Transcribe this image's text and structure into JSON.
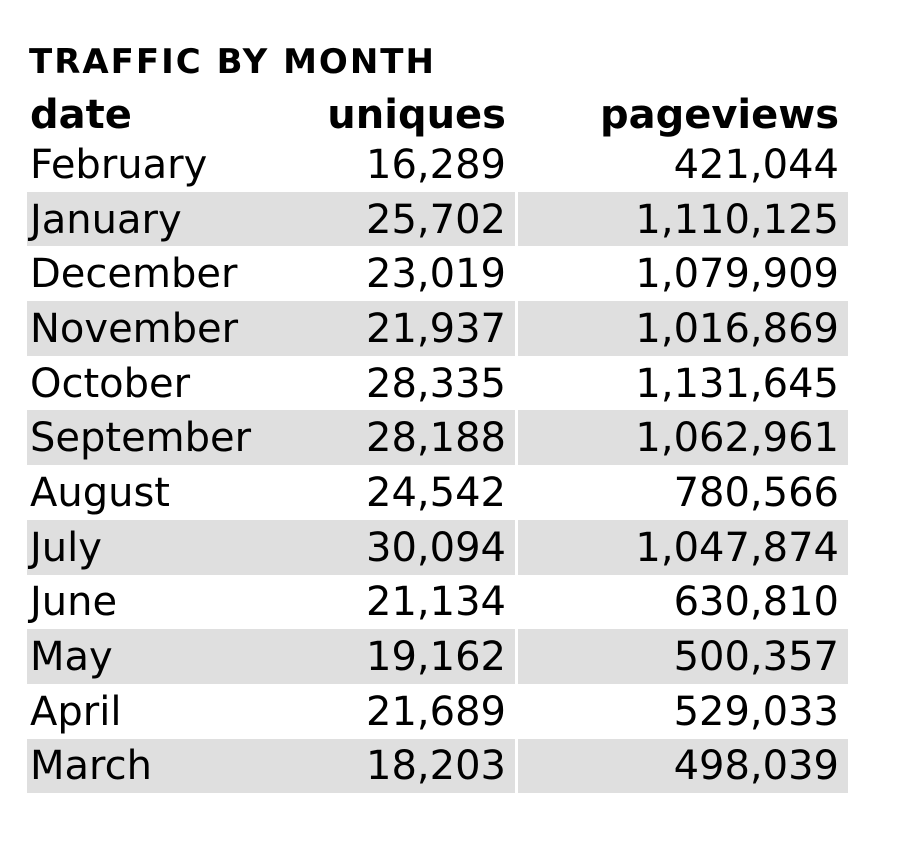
{
  "title": "TRAFFIC BY MONTH",
  "table": {
    "headers": {
      "date": "date",
      "uniques": "uniques",
      "pageviews": "pageviews"
    },
    "rows": [
      {
        "date": "February",
        "uniques": "16,289",
        "pageviews": "421,044"
      },
      {
        "date": "January",
        "uniques": "25,702",
        "pageviews": "1,110,125"
      },
      {
        "date": "December",
        "uniques": "23,019",
        "pageviews": "1,079,909"
      },
      {
        "date": "November",
        "uniques": "21,937",
        "pageviews": "1,016,869"
      },
      {
        "date": "October",
        "uniques": "28,335",
        "pageviews": "1,131,645"
      },
      {
        "date": "September",
        "uniques": "28,188",
        "pageviews": "1,062,961"
      },
      {
        "date": "August",
        "uniques": "24,542",
        "pageviews": "780,566"
      },
      {
        "date": "July",
        "uniques": "30,094",
        "pageviews": "1,047,874"
      },
      {
        "date": "June",
        "uniques": "21,134",
        "pageviews": "630,810"
      },
      {
        "date": "May",
        "uniques": "19,162",
        "pageviews": "500,357"
      },
      {
        "date": "April",
        "uniques": "21,689",
        "pageviews": "529,033"
      },
      {
        "date": "March",
        "uniques": "18,203",
        "pageviews": "498,039"
      }
    ]
  },
  "colors": {
    "background": "#ffffff",
    "stripe": "#dfdfdf",
    "text": "#000000"
  },
  "chart_data": {
    "type": "table",
    "title": "TRAFFIC BY MONTH",
    "columns": [
      "date",
      "uniques",
      "pageviews"
    ],
    "rows": [
      [
        "February",
        16289,
        421044
      ],
      [
        "January",
        25702,
        1110125
      ],
      [
        "December",
        23019,
        1079909
      ],
      [
        "November",
        21937,
        1016869
      ],
      [
        "October",
        28335,
        1131645
      ],
      [
        "September",
        28188,
        1062961
      ],
      [
        "August",
        24542,
        780566
      ],
      [
        "July",
        30094,
        1047874
      ],
      [
        "June",
        21134,
        630810
      ],
      [
        "May",
        19162,
        500357
      ],
      [
        "April",
        21689,
        529033
      ],
      [
        "March",
        18203,
        498039
      ]
    ],
    "layout": {
      "row_striping": "alternate starting on second data row",
      "numeric_alignment": "right"
    }
  }
}
